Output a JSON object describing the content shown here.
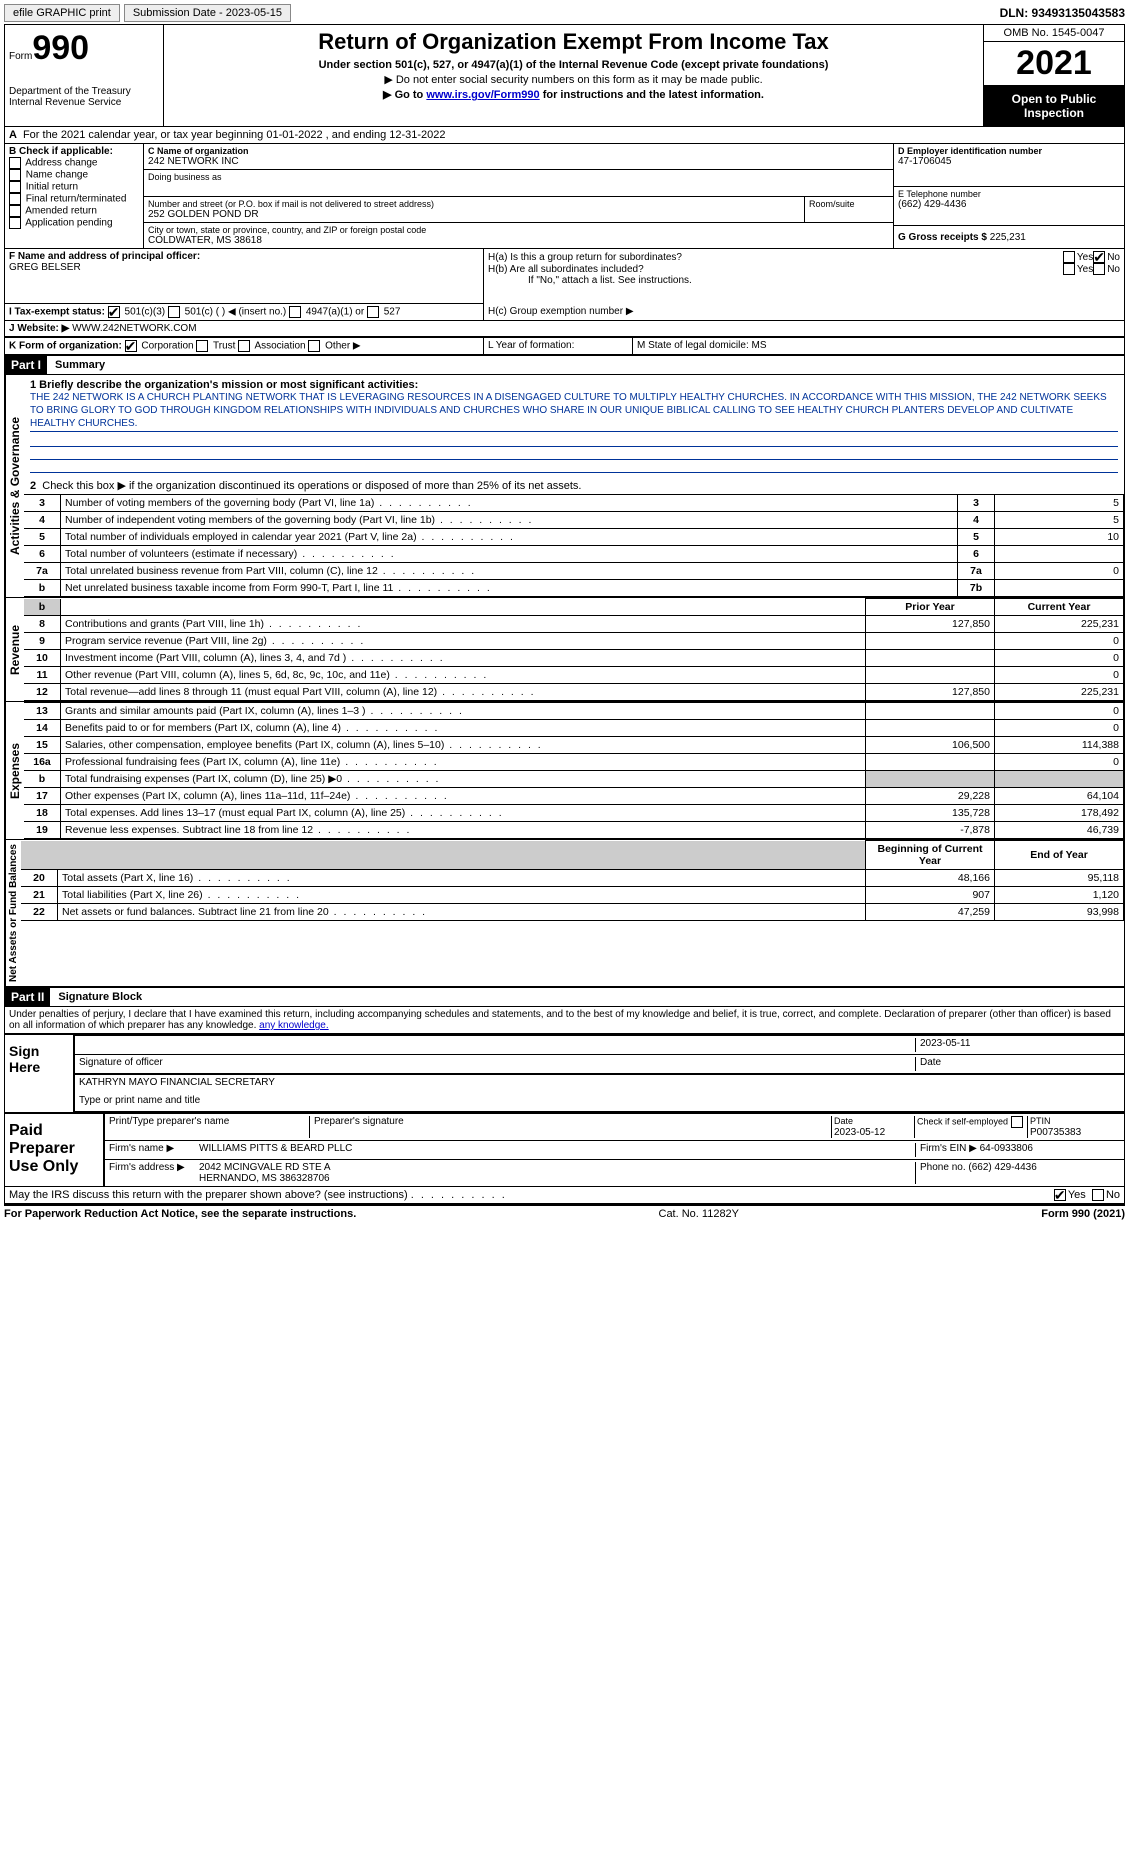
{
  "topbar": {
    "efile": "efile GRAPHIC print",
    "submission": "Submission Date - 2023-05-15",
    "dln": "DLN: 93493135043583"
  },
  "header": {
    "form_word": "Form",
    "form_num": "990",
    "dept": "Department of the Treasury\nInternal Revenue Service",
    "title": "Return of Organization Exempt From Income Tax",
    "sub": "Under section 501(c), 527, or 4947(a)(1) of the Internal Revenue Code (except private foundations)",
    "arrow1": "▶ Do not enter social security numbers on this form as it may be made public.",
    "arrow2_pre": "▶ Go to ",
    "arrow2_link": "www.irs.gov/Form990",
    "arrow2_post": " for instructions and the latest information.",
    "omb": "OMB No. 1545-0047",
    "year": "2021",
    "open": "Open to Public Inspection"
  },
  "sectionA": {
    "text": "For the 2021 calendar year, or tax year beginning 01-01-2022    , and ending 12-31-2022"
  },
  "sectionB": {
    "label": "B Check if applicable:",
    "opts": [
      "Address change",
      "Name change",
      "Initial return",
      "Final return/terminated",
      "Amended return",
      "Application pending"
    ]
  },
  "sectionC": {
    "name_lbl": "C Name of organization",
    "name": "242 NETWORK INC",
    "dba_lbl": "Doing business as",
    "addr_lbl": "Number and street (or P.O. box if mail is not delivered to street address)",
    "addr": "252 GOLDEN POND DR",
    "room_lbl": "Room/suite",
    "city_lbl": "City or town, state or province, country, and ZIP or foreign postal code",
    "city": "COLDWATER, MS  38618"
  },
  "sectionD": {
    "lbl": "D Employer identification number",
    "val": "47-1706045"
  },
  "sectionE": {
    "lbl": "E Telephone number",
    "val": "(662) 429-4436"
  },
  "sectionG": {
    "lbl": "G Gross receipts $",
    "val": "225,231"
  },
  "sectionF": {
    "lbl": "F  Name and address of principal officer:",
    "val": "GREG BELSER"
  },
  "sectionH": {
    "a": "H(a)  Is this a group return for subordinates?",
    "b": "H(b)  Are all subordinates included?",
    "note": "If \"No,\" attach a list. See instructions.",
    "c": "H(c)  Group exemption number ▶",
    "yes": "Yes",
    "no": "No"
  },
  "sectionI": {
    "lbl": "I   Tax-exempt status:",
    "o1": "501(c)(3)",
    "o2": "501(c) (  ) ◀ (insert no.)",
    "o3": "4947(a)(1) or",
    "o4": "527"
  },
  "sectionJ": {
    "lbl": "J   Website: ▶",
    "val": "WWW.242NETWORK.COM"
  },
  "sectionK": {
    "lbl": "K Form of organization:",
    "o1": "Corporation",
    "o2": "Trust",
    "o3": "Association",
    "o4": "Other ▶"
  },
  "sectionL": {
    "lbl": "L Year of formation:"
  },
  "sectionM": {
    "lbl": "M State of legal domicile: MS"
  },
  "part1": {
    "hdr": "Part I",
    "title": "Summary",
    "side_ag": "Activities & Governance",
    "l1_lbl": "1  Briefly describe the organization's mission or most significant activities:",
    "l1_txt": "THE 242 NETWORK IS A CHURCH PLANTING NETWORK THAT IS LEVERAGING RESOURCES IN A DISENGAGED CULTURE TO MULTIPLY HEALTHY CHURCHES. IN ACCORDANCE WITH THIS MISSION, THE 242 NETWORK SEEKS TO BRING GLORY TO GOD THROUGH KINGDOM RELATIONSHIPS WITH INDIVIDUALS AND CHURCHES WHO SHARE IN OUR UNIQUE BIBLICAL CALLING TO SEE HEALTHY CHURCH PLANTERS DEVELOP AND CULTIVATE HEALTHY CHURCHES.",
    "l2": "Check this box ▶    if the organization discontinued its operations or disposed of more than 25% of its net assets.",
    "rows_ag": [
      {
        "n": "3",
        "d": "Number of voting members of the governing body (Part VI, line 1a)",
        "box": "3",
        "v": "5"
      },
      {
        "n": "4",
        "d": "Number of independent voting members of the governing body (Part VI, line 1b)",
        "box": "4",
        "v": "5"
      },
      {
        "n": "5",
        "d": "Total number of individuals employed in calendar year 2021 (Part V, line 2a)",
        "box": "5",
        "v": "10"
      },
      {
        "n": "6",
        "d": "Total number of volunteers (estimate if necessary)",
        "box": "6",
        "v": ""
      },
      {
        "n": "7a",
        "d": "Total unrelated business revenue from Part VIII, column (C), line 12",
        "box": "7a",
        "v": "0"
      },
      {
        "n": "b",
        "d": "Net unrelated business taxable income from Form 990-T, Part I, line 11",
        "box": "7b",
        "v": ""
      }
    ],
    "side_rev": "Revenue",
    "prior": "Prior Year",
    "current": "Current Year",
    "rows_rev": [
      {
        "n": "8",
        "d": "Contributions and grants (Part VIII, line 1h)",
        "p": "127,850",
        "c": "225,231"
      },
      {
        "n": "9",
        "d": "Program service revenue (Part VIII, line 2g)",
        "p": "",
        "c": "0"
      },
      {
        "n": "10",
        "d": "Investment income (Part VIII, column (A), lines 3, 4, and 7d )",
        "p": "",
        "c": "0"
      },
      {
        "n": "11",
        "d": "Other revenue (Part VIII, column (A), lines 5, 6d, 8c, 9c, 10c, and 11e)",
        "p": "",
        "c": "0"
      },
      {
        "n": "12",
        "d": "Total revenue—add lines 8 through 11 (must equal Part VIII, column (A), line 12)",
        "p": "127,850",
        "c": "225,231"
      }
    ],
    "side_exp": "Expenses",
    "rows_exp": [
      {
        "n": "13",
        "d": "Grants and similar amounts paid (Part IX, column (A), lines 1–3 )",
        "p": "",
        "c": "0"
      },
      {
        "n": "14",
        "d": "Benefits paid to or for members (Part IX, column (A), line 4)",
        "p": "",
        "c": "0"
      },
      {
        "n": "15",
        "d": "Salaries, other compensation, employee benefits (Part IX, column (A), lines 5–10)",
        "p": "106,500",
        "c": "114,388"
      },
      {
        "n": "16a",
        "d": "Professional fundraising fees (Part IX, column (A), line 11e)",
        "p": "",
        "c": "0"
      },
      {
        "n": "b",
        "d": "Total fundraising expenses (Part IX, column (D), line 25) ▶0",
        "p": "GRAY",
        "c": "GRAY"
      },
      {
        "n": "17",
        "d": "Other expenses (Part IX, column (A), lines 11a–11d, 11f–24e)",
        "p": "29,228",
        "c": "64,104"
      },
      {
        "n": "18",
        "d": "Total expenses. Add lines 13–17 (must equal Part IX, column (A), line 25)",
        "p": "135,728",
        "c": "178,492"
      },
      {
        "n": "19",
        "d": "Revenue less expenses. Subtract line 18 from line 12",
        "p": "-7,878",
        "c": "46,739"
      }
    ],
    "side_na": "Net Assets or Fund Balances",
    "begin": "Beginning of Current Year",
    "end": "End of Year",
    "rows_na": [
      {
        "n": "20",
        "d": "Total assets (Part X, line 16)",
        "p": "48,166",
        "c": "95,118"
      },
      {
        "n": "21",
        "d": "Total liabilities (Part X, line 26)",
        "p": "907",
        "c": "1,120"
      },
      {
        "n": "22",
        "d": "Net assets or fund balances. Subtract line 21 from line 20",
        "p": "47,259",
        "c": "93,998"
      }
    ]
  },
  "part2": {
    "hdr": "Part II",
    "title": "Signature Block",
    "decl": "Under penalties of perjury, I declare that I have examined this return, including accompanying schedules and statements, and to the best of my knowledge and belief, it is true, correct, and complete. Declaration of preparer (other than officer) is based on all information of which preparer has any knowledge.",
    "sign": "Sign Here",
    "sig_officer": "Signature of officer",
    "date1": "2023-05-11",
    "date_lbl": "Date",
    "name_title": "KATHRYN MAYO  FINANCIAL SECRETARY",
    "type_lbl": "Type or print name and title",
    "paid": "Paid Preparer Use Only",
    "prep_name_lbl": "Print/Type preparer's name",
    "prep_sig_lbl": "Preparer's signature",
    "date2": "2023-05-12",
    "check_self": "Check        if self-employed",
    "ptin_lbl": "PTIN",
    "ptin": "P00735383",
    "firm_name_lbl": "Firm's name    ▶",
    "firm_name": "WILLIAMS PITTS & BEARD PLLC",
    "firm_ein_lbl": "Firm's EIN ▶",
    "firm_ein": "64-0933806",
    "firm_addr_lbl": "Firm's address ▶",
    "firm_addr1": "2042 MCINGVALE RD STE A",
    "firm_addr2": "HERNANDO, MS  386328706",
    "phone_lbl": "Phone no.",
    "phone": "(662) 429-4436",
    "discuss": "May the IRS discuss this return with the preparer shown above? (see instructions)",
    "yes": "Yes",
    "no": "No"
  },
  "footer": {
    "l": "For Paperwork Reduction Act Notice, see the separate instructions.",
    "c": "Cat. No. 11282Y",
    "r": "Form 990 (2021)"
  }
}
